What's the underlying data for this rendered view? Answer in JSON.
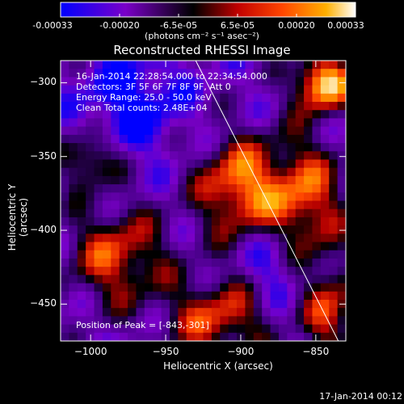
{
  "colorbar": {
    "tick_labels": [
      "-0.00033",
      "-0.00020",
      "-6.5e-05",
      "6.5e-05",
      "0.00020",
      "0.00033"
    ],
    "unit_label": "(photons cm⁻² s⁻¹ asec⁻²)"
  },
  "info": {
    "line1": "16-Jan-2014 22:28:54.000 to 22:34:54.000",
    "line2": "Detectors: 3F 5F 6F 7F 8F 9F, Att 0",
    "line3": "Energy Range: 25.0 - 50.0 keV",
    "line4": "Clean     Total counts: 2.48E+04",
    "peak": "Position of Peak = [-843,-301]"
  },
  "footer": {
    "date": "17-Jan-2014 00:12"
  },
  "chart_data": {
    "type": "heatmap",
    "title": "Reconstructed RHESSI Image",
    "xlabel": "Heliocentric X (arcsec)",
    "ylabel": "Heliocentric Y (arcsec)",
    "xlim": [
      -1020,
      -830
    ],
    "ylim": [
      -475,
      -285
    ],
    "x_ticks": [
      -1000,
      -950,
      -900,
      -850
    ],
    "y_ticks": [
      -300,
      -350,
      -400,
      -450
    ],
    "x_tick_labels": [
      "−1000",
      "−950",
      "−900",
      "−850"
    ],
    "y_tick_labels": [
      "−300",
      "−350",
      "−400",
      "−450"
    ],
    "colorbar_range": [
      -0.00033,
      0.00033
    ],
    "peak_position": [
      -843,
      -301
    ],
    "limb_line": [
      [
        -930,
        -285
      ],
      [
        -835,
        -475
      ]
    ],
    "colormap": [
      "#0000ff",
      "#8000c0",
      "#000000",
      "#b00000",
      "#ff4000",
      "#ffb000",
      "#ffffff"
    ]
  }
}
